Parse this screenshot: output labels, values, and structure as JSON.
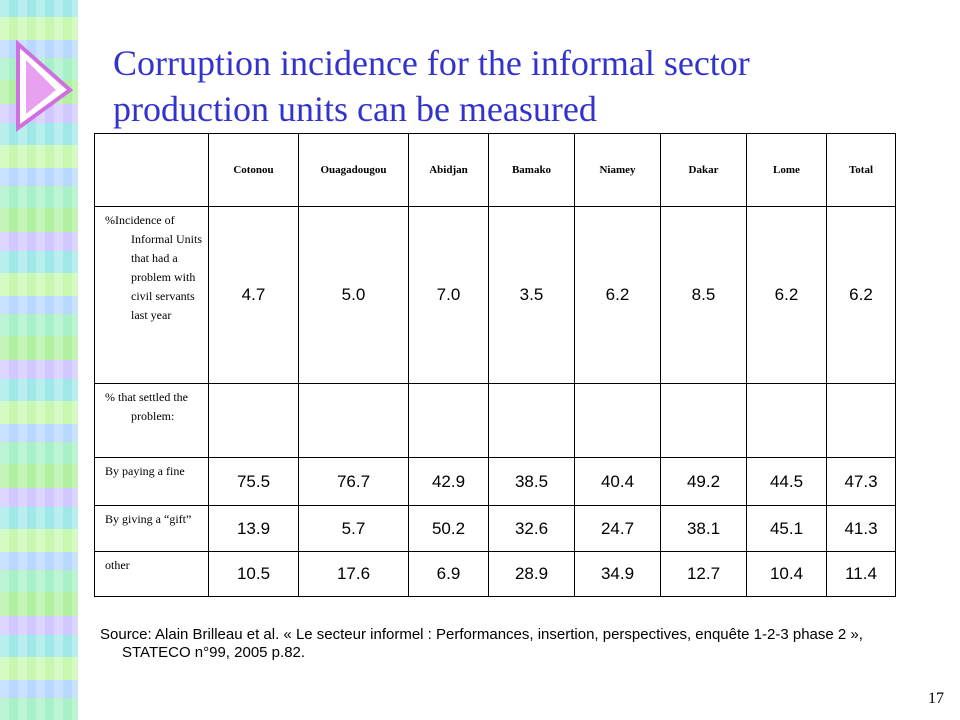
{
  "title": "Corruption incidence for the informal sector production units can be measured",
  "table": {
    "header": [
      "Cotonou",
      "Ouagadougou",
      "Abidjan",
      "Bamako",
      "Niamey",
      "Dakar",
      "Lome",
      "Total"
    ],
    "rows": [
      {
        "label": "%Incidence of Informal Units that had a problem with civil servants last year",
        "cells": [
          "4.7",
          "5.0",
          "7.0",
          "3.5",
          "6.2",
          "8.5",
          "6.2",
          "6.2"
        ]
      },
      {
        "label": "% that settled the problem:",
        "cells": []
      },
      {
        "label": "By paying a fine",
        "cells": [
          "75.5",
          "76.7",
          "42.9",
          "38.5",
          "40.4",
          "49.2",
          "44.5",
          "47.3"
        ]
      },
      {
        "label": "By giving a “gift”",
        "cells": [
          "13.9",
          "5.7",
          "50.2",
          "32.6",
          "24.7",
          "38.1",
          "45.1",
          "41.3"
        ]
      },
      {
        "label": "other",
        "cells": [
          "10.5",
          "17.6",
          "6.9",
          "28.9",
          "34.9",
          "12.7",
          "10.4",
          "11.4"
        ]
      }
    ]
  },
  "source": "Source: Alain Brilleau et al. « Le secteur informel : Performances, insertion, perspectives, enquête 1-2-3 phase 2 », STATECO n°99, 2005 p.82.",
  "page_number": "17"
}
